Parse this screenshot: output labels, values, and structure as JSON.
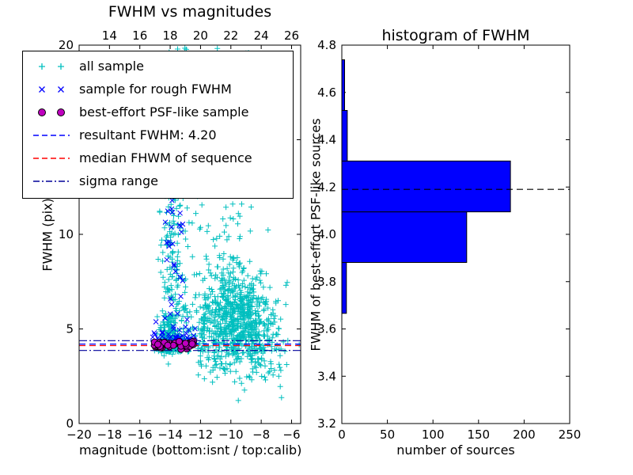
{
  "colors": {
    "all_sample": "#00bfbf",
    "rough_fwhm": "#0000ff",
    "psf_sample_fill": "#bf00bf",
    "psf_sample_edge": "#000000",
    "resultant_line": "#0000ff",
    "median_line": "#ff0000",
    "sigma_line": "#000099",
    "hist_bar": "#0000ff",
    "axis": "#000000"
  },
  "legend": {
    "items": [
      {
        "label": "all sample",
        "marker": "plus",
        "color": "#00bfbf"
      },
      {
        "label": "sample for rough FWHM",
        "marker": "x",
        "color": "#0000ff"
      },
      {
        "label": "best-effort PSF-like sample",
        "marker": "circle",
        "color": "#bf00bf",
        "edge": "#000000"
      },
      {
        "label": "resultant FWHM: 4.20",
        "marker": "dashed",
        "color": "#0000ff"
      },
      {
        "label": "median FHWM of sequence",
        "marker": "dashed",
        "color": "#ff0000"
      },
      {
        "label": "sigma range",
        "marker": "dashdot",
        "color": "#000099"
      }
    ]
  },
  "chart_data": [
    {
      "type": "scatter",
      "title": "FWHM vs magnitudes",
      "xlabel": "magnitude (bottom:isnt / top:calib)",
      "ylabel": "FWHM (pix)",
      "x_bottom_lim": [
        -20,
        -5.4
      ],
      "x_top_lim": [
        12.0,
        26.6
      ],
      "ylim": [
        0,
        20
      ],
      "x_bottom_ticks": [
        -20,
        -18,
        -16,
        -14,
        -12,
        -10,
        -8,
        -6
      ],
      "x_bottom_tick_labels": [
        "−20",
        "−18",
        "−16",
        "−14",
        "−12",
        "−10",
        "−8",
        "−6"
      ],
      "x_top_ticks": [
        14,
        16,
        18,
        20,
        22,
        24,
        26
      ],
      "x_top_tick_labels": [
        "14",
        "16",
        "18",
        "20",
        "22",
        "24",
        "26"
      ],
      "yticks": [
        0,
        5,
        10,
        15,
        20
      ],
      "ytick_labels": [
        "0",
        "5",
        "10",
        "15",
        "20"
      ],
      "series": [
        {
          "name": "all sample",
          "marker": "plus",
          "color": "#00bfbf",
          "clusters": [
            {
              "n": 320,
              "x": [
                "n",
                -13.75,
                0.5
              ],
              "y": [
                "p",
                3.8,
                16.2,
                2.0
              ]
            },
            {
              "n": 120,
              "x": [
                "n",
                -14.1,
                0.35
              ],
              "y": [
                "n",
                4.6,
                0.5
              ]
            },
            {
              "n": 680,
              "x": [
                "n",
                -9.4,
                1.15
              ],
              "y": [
                "n",
                5.3,
                1.3
              ]
            },
            {
              "n": 170,
              "x": [
                "n",
                -10.3,
                1.1
              ],
              "y": [
                "p",
                6.0,
                14.0,
                1.6
              ]
            },
            {
              "n": 110,
              "x": [
                "n",
                -11.8,
                0.8
              ],
              "y": [
                "n",
                4.8,
                1.0
              ]
            },
            {
              "n": 40,
              "x": [
                "u",
                -9.2,
                -6.2
              ],
              "y": [
                "n",
                3.3,
                0.7
              ]
            },
            {
              "n": 30,
              "x": [
                "u",
                -12.4,
                -9.0
              ],
              "y": [
                "u",
                12,
                20
              ]
            }
          ]
        },
        {
          "name": "sample for rough FWHM",
          "marker": "x",
          "color": "#0000ff",
          "clusters": [
            {
              "n": 55,
              "x": [
                "u",
                -15.2,
                -12.3
              ],
              "y": [
                "hn",
                4.05,
                0.45
              ]
            },
            {
              "n": 25,
              "x": [
                "n",
                -13.6,
                0.5
              ],
              "y": [
                "p",
                4.5,
                7.5,
                1.5
              ]
            },
            {
              "n": 8,
              "x": [
                "n",
                -14.0,
                0.4
              ],
              "y": [
                "u",
                8,
                12.5
              ]
            }
          ]
        },
        {
          "name": "best-effort PSF-like sample",
          "marker": "circle",
          "color": "#bf00bf",
          "edge_color": "#000000",
          "clusters": [
            {
              "n": 55,
              "x": [
                "u",
                -15.05,
                -12.45
              ],
              "y": [
                "n",
                4.16,
                0.09
              ]
            }
          ]
        }
      ],
      "hlines": [
        {
          "name": "resultant FWHM",
          "value": 4.2,
          "style": "dashed",
          "color": "#0000ff"
        },
        {
          "name": "median FHWM of sequence",
          "value": 4.12,
          "style": "dashed",
          "color": "#ff0000"
        },
        {
          "name": "sigma range upper",
          "value": 4.38,
          "style": "dashdot",
          "color": "#000099"
        },
        {
          "name": "sigma range lower",
          "value": 3.86,
          "style": "dashdot",
          "color": "#000099"
        }
      ]
    },
    {
      "type": "bar",
      "orientation": "horizontal",
      "title": "histogram of FWHM",
      "xlabel": "number of sources",
      "ylabel": "FWHM of best-effort PSF-like sources",
      "xlim": [
        0,
        250
      ],
      "ylim": [
        3.2,
        4.8
      ],
      "xticks": [
        0,
        50,
        100,
        150,
        200,
        250
      ],
      "xtick_labels": [
        "0",
        "50",
        "100",
        "150",
        "200",
        "250"
      ],
      "yticks": [
        3.2,
        3.4,
        3.6,
        3.8,
        4.0,
        4.2,
        4.4,
        4.6,
        4.8
      ],
      "ytick_labels": [
        "3.2",
        "3.4",
        "3.6",
        "3.8",
        "4.0",
        "4.2",
        "4.4",
        "4.6",
        "4.8"
      ],
      "bin_edges": [
        3.666,
        3.881,
        4.095,
        4.31,
        4.524,
        4.738
      ],
      "counts": [
        5,
        137,
        185,
        6,
        3
      ],
      "bar_color": "#0000ff",
      "bar_edge_color": "#000000",
      "hline": {
        "value": 4.19,
        "style": "dashed",
        "color": "#000000"
      }
    }
  ]
}
